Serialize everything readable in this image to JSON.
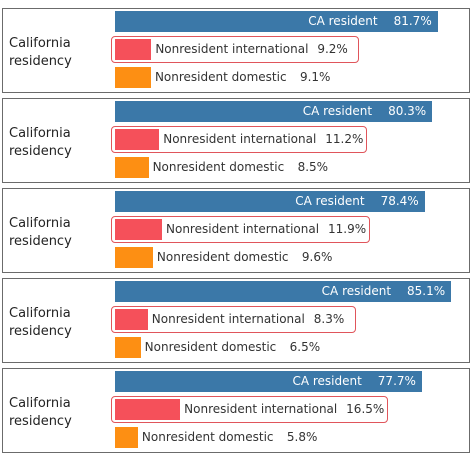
{
  "colors": {
    "ca": "#3b78a8",
    "intl": "#f5505a",
    "domestic": "#fd8f13",
    "highlight": "#e0555b"
  },
  "chart_data": [
    {
      "type": "bar",
      "row_label": "California residency",
      "categories": [
        "CA resident",
        "Nonresident international",
        "Nonresident domestic"
      ],
      "values": [
        81.7,
        9.2,
        9.1
      ],
      "value_labels": [
        "81.7%",
        "9.2%",
        "9.1%"
      ]
    },
    {
      "type": "bar",
      "row_label": "California residency",
      "categories": [
        "CA resident",
        "Nonresident international",
        "Nonresident domestic"
      ],
      "values": [
        80.3,
        11.2,
        8.5
      ],
      "value_labels": [
        "80.3%",
        "11.2%",
        "8.5%"
      ]
    },
    {
      "type": "bar",
      "row_label": "California residency",
      "categories": [
        "CA resident",
        "Nonresident international",
        "Nonresident domestic"
      ],
      "values": [
        78.4,
        11.9,
        9.6
      ],
      "value_labels": [
        "78.4%",
        "11.9%",
        "9.6%"
      ]
    },
    {
      "type": "bar",
      "row_label": "California residency",
      "categories": [
        "CA resident",
        "Nonresident international",
        "Nonresident domestic"
      ],
      "values": [
        85.1,
        8.3,
        6.5
      ],
      "value_labels": [
        "85.1%",
        "8.3%",
        "6.5%"
      ]
    },
    {
      "type": "bar",
      "row_label": "California residency",
      "categories": [
        "CA resident",
        "Nonresident international",
        "Nonresident domestic"
      ],
      "values": [
        77.7,
        16.5,
        5.8
      ],
      "value_labels": [
        "77.7%",
        "16.5%",
        "5.8%"
      ]
    }
  ]
}
